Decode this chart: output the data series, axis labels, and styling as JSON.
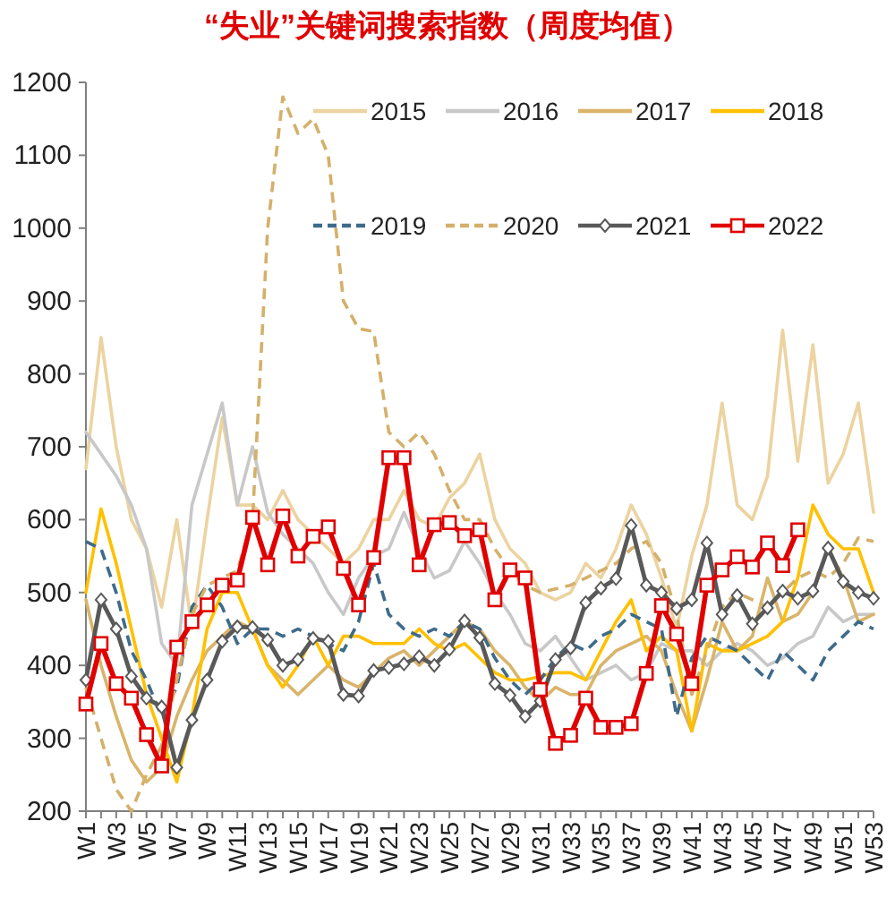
{
  "chart_data": {
    "type": "line",
    "title": "“失业”关键词搜索指数（周度均值）",
    "categories": [
      "W1",
      null,
      "W3",
      null,
      "W5",
      null,
      "W7",
      null,
      "W9",
      null,
      "W11",
      null,
      "W13",
      null,
      "W15",
      null,
      "W17",
      null,
      "W19",
      null,
      "W21",
      null,
      "W23",
      null,
      "W25",
      null,
      "W27",
      null,
      "W29",
      null,
      "W31",
      null,
      "W33",
      null,
      "W35",
      null,
      "W37",
      null,
      "W39",
      null,
      "W41",
      null,
      "W43",
      null,
      "W45",
      null,
      "W47",
      null,
      "W49",
      null,
      "W51",
      null,
      "W53"
    ],
    "ylim": [
      200,
      1200
    ],
    "yticks": [
      200,
      300,
      400,
      500,
      600,
      700,
      800,
      900,
      1000,
      1100,
      1200
    ],
    "grid": false,
    "legend": "top",
    "series": [
      {
        "name": "2015",
        "color": "#ecd3a0",
        "line_style": "solid",
        "marker": "none",
        "values": [
          670,
          850,
          700,
          600,
          560,
          480,
          600,
          450,
          600,
          740,
          620,
          620,
          600,
          640,
          600,
          580,
          560,
          540,
          560,
          600,
          600,
          640,
          600,
          590,
          630,
          650,
          690,
          600,
          560,
          540,
          500,
          490,
          500,
          540,
          520,
          560,
          620,
          580,
          520,
          450,
          550,
          620,
          760,
          620,
          600,
          660,
          860,
          680,
          840,
          650,
          690,
          760,
          610
        ]
      },
      {
        "name": "2016",
        "color": "#c8c8c8",
        "line_style": "solid",
        "marker": "none",
        "values": [
          720,
          690,
          660,
          620,
          560,
          430,
          400,
          620,
          690,
          760,
          620,
          700,
          610,
          580,
          560,
          540,
          500,
          470,
          520,
          550,
          560,
          610,
          560,
          520,
          530,
          570,
          540,
          500,
          470,
          430,
          420,
          440,
          410,
          380,
          390,
          400,
          380,
          390,
          430,
          420,
          420,
          400,
          420,
          430,
          420,
          400,
          410,
          430,
          440,
          480,
          460,
          470,
          470
        ]
      },
      {
        "name": "2017",
        "color": "#d9b46a",
        "line_style": "solid",
        "marker": "none",
        "values": [
          490,
          400,
          330,
          270,
          240,
          260,
          330,
          380,
          420,
          440,
          460,
          450,
          400,
          380,
          360,
          380,
          400,
          380,
          370,
          390,
          410,
          420,
          400,
          420,
          440,
          460,
          450,
          420,
          400,
          370,
          350,
          370,
          360,
          360,
          400,
          420,
          430,
          440,
          420,
          360,
          310,
          380,
          460,
          420,
          440,
          520,
          460,
          470,
          500,
          560,
          520,
          460,
          470
        ]
      },
      {
        "name": "2018",
        "color": "#ffc000",
        "line_style": "solid",
        "marker": "none",
        "values": [
          500,
          615,
          540,
          450,
          360,
          300,
          240,
          330,
          450,
          500,
          500,
          450,
          400,
          370,
          400,
          440,
          400,
          440,
          440,
          430,
          430,
          430,
          450,
          430,
          420,
          430,
          410,
          390,
          380,
          380,
          385,
          390,
          390,
          380,
          420,
          460,
          490,
          420,
          440,
          420,
          310,
          430,
          420,
          420,
          430,
          440,
          460,
          520,
          620,
          580,
          560,
          560,
          500
        ]
      },
      {
        "name": "2019",
        "color": "#3e6b8a",
        "line_style": "dashed",
        "marker": "none",
        "values": [
          570,
          560,
          500,
          420,
          380,
          330,
          370,
          480,
          510,
          480,
          430,
          450,
          450,
          440,
          450,
          440,
          430,
          420,
          460,
          540,
          470,
          450,
          440,
          450,
          440,
          460,
          450,
          410,
          380,
          360,
          380,
          410,
          430,
          420,
          440,
          450,
          470,
          460,
          450,
          330,
          410,
          440,
          430,
          420,
          400,
          380,
          420,
          400,
          380,
          420,
          440,
          460,
          450
        ]
      },
      {
        "name": "2020",
        "color": "#d4b06a",
        "line_style": "dashed",
        "marker": "none",
        "values": [
          370,
          300,
          230,
          200,
          250,
          290,
          380,
          470,
          510,
          520,
          530,
          600,
          1000,
          1180,
          1130,
          1150,
          1100,
          900,
          862,
          858,
          720,
          700,
          720,
          690,
          640,
          600,
          600,
          560,
          530,
          510,
          500,
          505,
          510,
          520,
          530,
          540,
          560,
          570,
          540,
          470,
          360,
          420,
          480,
          500,
          490,
          480,
          500,
          520,
          530,
          520,
          540,
          575,
          570
        ]
      },
      {
        "name": "2021",
        "color": "#595959",
        "line_style": "solid",
        "marker": "diamond",
        "values": [
          380,
          490,
          450,
          385,
          355,
          343,
          260,
          325,
          380,
          433,
          453,
          452,
          435,
          400,
          408,
          437,
          433,
          360,
          358,
          393,
          397,
          402,
          412,
          400,
          422,
          461,
          438,
          375,
          359,
          330,
          351,
          408,
          424,
          486,
          506,
          519,
          592,
          510,
          500,
          478,
          490,
          568,
          470,
          496,
          457,
          479,
          502,
          492,
          502,
          561,
          515,
          500,
          492
        ]
      },
      {
        "name": "2022",
        "color": "#e00000",
        "line_style": "solid",
        "marker": "square",
        "values": [
          347,
          430,
          375,
          355,
          305,
          262,
          425,
          460,
          483,
          510,
          517,
          603,
          538,
          605,
          550,
          577,
          590,
          533,
          483,
          548,
          685,
          685,
          538,
          593,
          596,
          578,
          586,
          490,
          531,
          520,
          367,
          293,
          304,
          355,
          315,
          315,
          320,
          389,
          482,
          443,
          375,
          510,
          531,
          549,
          535,
          568,
          537,
          586,
          null,
          null,
          null,
          null,
          null
        ]
      }
    ]
  }
}
